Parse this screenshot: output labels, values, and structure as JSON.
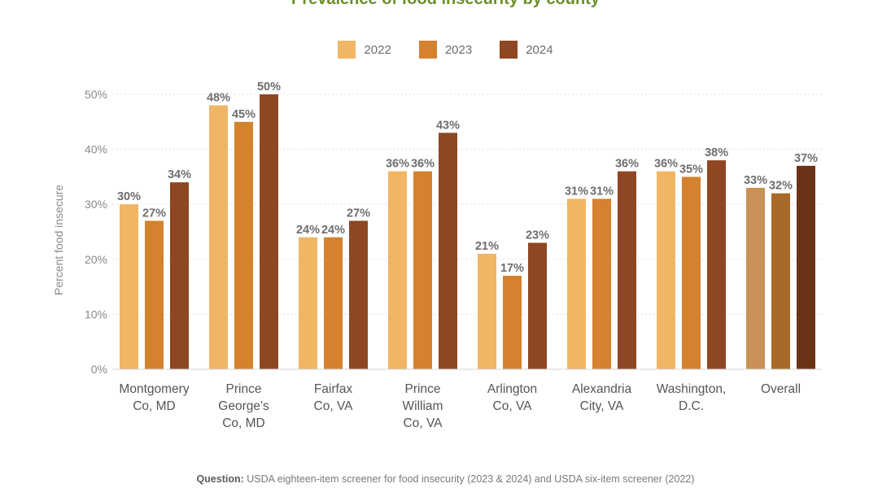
{
  "chart_data": {
    "type": "bar",
    "title": "Prevalence of food insecurity by county",
    "ylabel": "Percent food insecure",
    "xlabel": "",
    "ylim": [
      0,
      50
    ],
    "yticks": [
      "0%",
      "10%",
      "20%",
      "30%",
      "40%",
      "50%"
    ],
    "ytick_values": [
      0,
      10,
      20,
      30,
      40,
      50
    ],
    "grid": true,
    "legend_position": "top-center",
    "categories": [
      [
        "Montgomery",
        "Co, MD"
      ],
      [
        "Prince",
        "George's",
        "Co, MD"
      ],
      [
        "Fairfax",
        "Co, VA"
      ],
      [
        "Prince",
        "William",
        "Co, VA"
      ],
      [
        "Arlington",
        "Co, VA"
      ],
      [
        "Alexandria",
        "City, VA"
      ],
      [
        "Washington,",
        "D.C."
      ],
      [
        "Overall"
      ]
    ],
    "series": [
      {
        "name": "2022",
        "color": "#f0b565",
        "overall_color": "#c99156",
        "values": [
          30,
          48,
          24,
          36,
          21,
          31,
          36,
          33
        ]
      },
      {
        "name": "2023",
        "color": "#d4822e",
        "overall_color": "#a86a2a",
        "values": [
          27,
          45,
          24,
          36,
          17,
          31,
          35,
          32
        ]
      },
      {
        "name": "2024",
        "color": "#8e4722",
        "overall_color": "#6b3315",
        "values": [
          34,
          50,
          27,
          43,
          23,
          36,
          38,
          37
        ]
      }
    ],
    "data_labels": [
      [
        "30%",
        "48%",
        "24%",
        "36%",
        "21%",
        "31%",
        "36%",
        "33%"
      ],
      [
        "27%",
        "45%",
        "24%",
        "36%",
        "17%",
        "31%",
        "35%",
        "32%"
      ],
      [
        "34%",
        "50%",
        "27%",
        "43%",
        "23%",
        "36%",
        "38%",
        "37%"
      ]
    ]
  },
  "footnote": {
    "label": "Question:",
    "text": " USDA eighteen-item screener for food insecurity (2023 & 2024) and USDA six-item screener (2022)"
  }
}
